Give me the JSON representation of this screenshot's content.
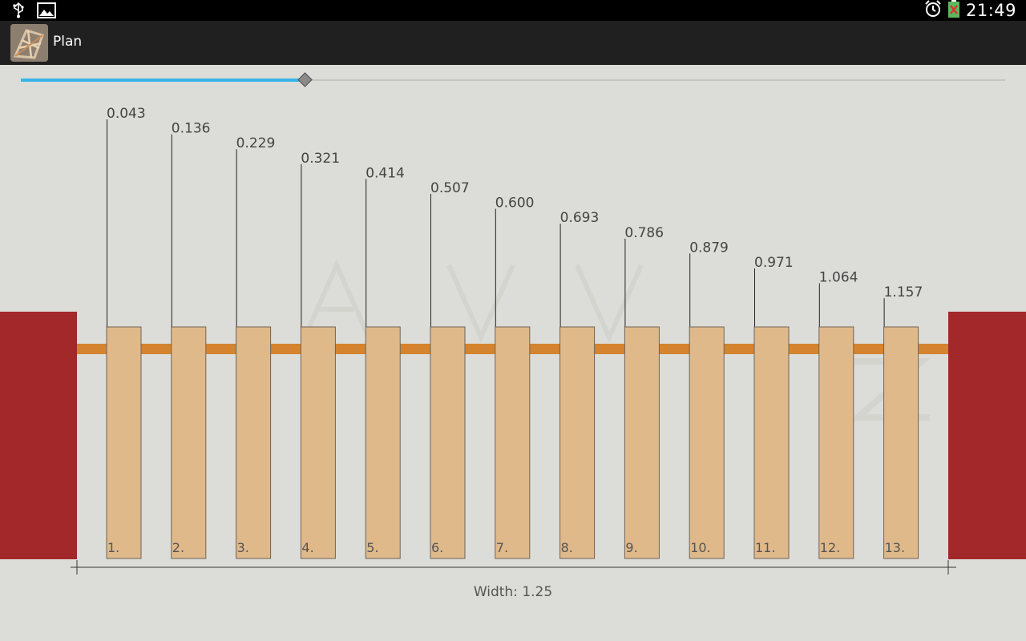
{
  "status_bar": {
    "time": "21:49",
    "icons": [
      "usb-icon",
      "image-icon",
      "alarm-icon",
      "battery-icon"
    ]
  },
  "action_bar": {
    "title": "Plan",
    "app_icon": "plan-app-icon"
  },
  "slider": {
    "value_fraction": 0.288
  },
  "plan": {
    "posts": [
      {
        "label": "1.",
        "value": "0.043"
      },
      {
        "label": "2.",
        "value": "0.136"
      },
      {
        "label": "3.",
        "value": "0.229"
      },
      {
        "label": "4.",
        "value": "0.321"
      },
      {
        "label": "5.",
        "value": "0.414"
      },
      {
        "label": "6.",
        "value": "0.507"
      },
      {
        "label": "7.",
        "value": "0.600"
      },
      {
        "label": "8.",
        "value": "0.693"
      },
      {
        "label": "9.",
        "value": "0.786"
      },
      {
        "label": "10.",
        "value": "0.879"
      },
      {
        "label": "11.",
        "value": "0.971"
      },
      {
        "label": "12.",
        "value": "1.064"
      },
      {
        "label": "13.",
        "value": "1.157"
      }
    ],
    "width_label": "Width: 1.25",
    "colors": {
      "pillar": "#a3282a",
      "post": "#e0b98a",
      "rail": "#d4842e",
      "accent": "#37b5e6"
    }
  }
}
